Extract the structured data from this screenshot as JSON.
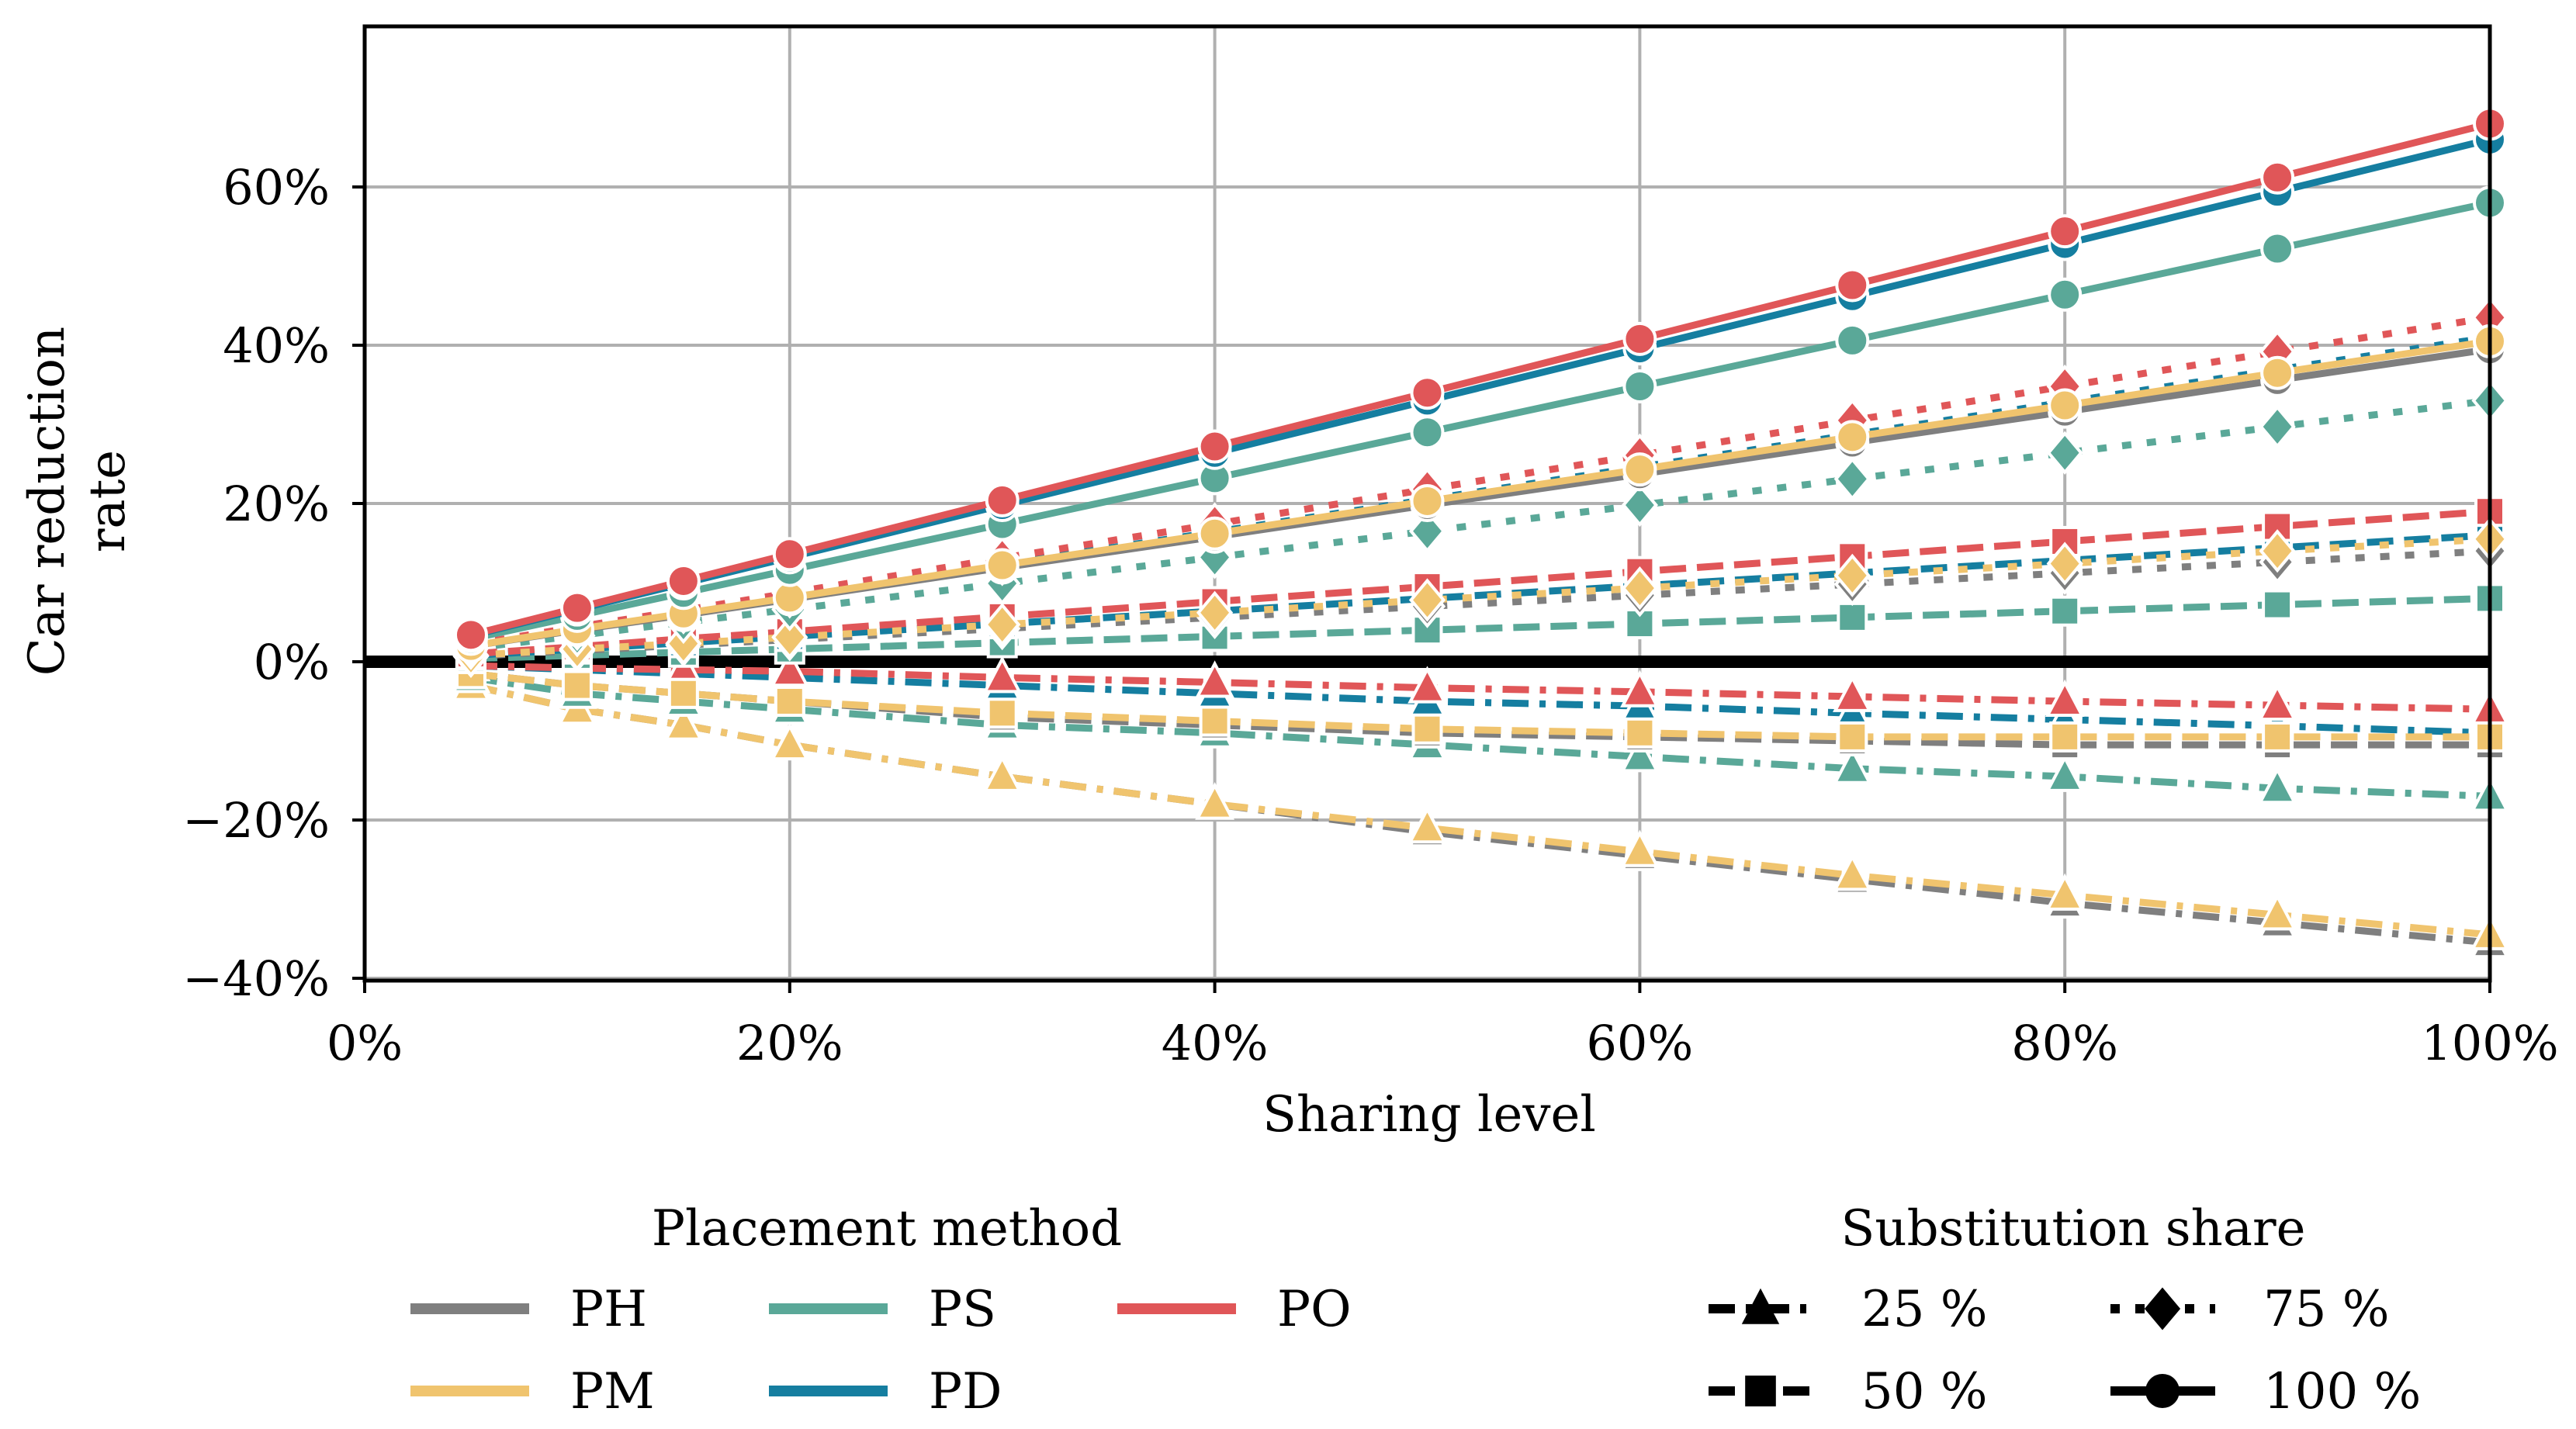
{
  "chart_data": {
    "type": "line",
    "title": "",
    "xlabel": "Sharing level",
    "ylabel": [
      "Car reduction",
      "rate"
    ],
    "xlim": [
      0,
      100
    ],
    "ylim": [
      -40,
      80
    ],
    "xticks": [
      0,
      20,
      40,
      60,
      80,
      100
    ],
    "xtick_labels": [
      "0%",
      "20%",
      "40%",
      "60%",
      "80%",
      "100%"
    ],
    "yticks": [
      -40,
      -20,
      0,
      20,
      40,
      60
    ],
    "ytick_labels": [
      "−40%",
      "−20%",
      "0%",
      "20%",
      "40%",
      "60%"
    ],
    "grid": true,
    "zero_line": true,
    "x": [
      5,
      10,
      15,
      20,
      30,
      40,
      50,
      60,
      70,
      80,
      90,
      100
    ],
    "placement_methods": [
      {
        "name": "PH",
        "color": "#7f7f7f"
      },
      {
        "name": "PM",
        "color": "#f0c46e"
      },
      {
        "name": "PS",
        "color": "#5aa898"
      },
      {
        "name": "PD",
        "color": "#157ea0"
      },
      {
        "name": "PO",
        "color": "#e05658"
      }
    ],
    "substitution_shares": [
      {
        "name": "25 %",
        "marker": "triangle",
        "linestyle": "dashdot"
      },
      {
        "name": "50 %",
        "marker": "square",
        "linestyle": "dashed"
      },
      {
        "name": "75 %",
        "marker": "diamond",
        "linestyle": "dotted"
      },
      {
        "name": "100 %",
        "marker": "circle",
        "linestyle": "solid"
      }
    ],
    "series": [
      {
        "method": "PH",
        "share": "25 %",
        "values": [
          -3,
          -6,
          -8,
          -10.5,
          -14.5,
          -18,
          -21.5,
          -24.5,
          -27.5,
          -30.5,
          -33,
          -35.5
        ]
      },
      {
        "method": "PM",
        "share": "25 %",
        "values": [
          -3,
          -6,
          -8,
          -10.5,
          -14.5,
          -18,
          -21,
          -24,
          -27,
          -29.5,
          -32,
          -34.5
        ]
      },
      {
        "method": "PS",
        "share": "25 %",
        "values": [
          -2,
          -4,
          -5,
          -6,
          -8,
          -9,
          -10.5,
          -12,
          -13.5,
          -14.5,
          -16,
          -17
        ]
      },
      {
        "method": "PD",
        "share": "25 %",
        "values": [
          -0.5,
          -1,
          -1.5,
          -2,
          -3,
          -4,
          -5,
          -5.6,
          -6.5,
          -7.3,
          -8.1,
          -9
        ]
      },
      {
        "method": "PO",
        "share": "25 %",
        "values": [
          -0.5,
          -0.8,
          -1,
          -1.2,
          -2,
          -2.6,
          -3.3,
          -3.8,
          -4.4,
          -5,
          -5.5,
          -6
        ]
      },
      {
        "method": "PH",
        "share": "50 %",
        "values": [
          -1.5,
          -3,
          -4,
          -5,
          -7,
          -8,
          -9,
          -9.5,
          -10,
          -10.5,
          -10.5,
          -10.5
        ]
      },
      {
        "method": "PM",
        "share": "50 %",
        "values": [
          -1.5,
          -3,
          -4,
          -5,
          -6.5,
          -7.5,
          -8.5,
          -9,
          -9.5,
          -9.5,
          -9.5,
          -9.5
        ]
      },
      {
        "method": "PS",
        "share": "50 %",
        "values": [
          0.4,
          0.8,
          1.2,
          1.6,
          2.4,
          3.2,
          4,
          4.8,
          5.6,
          6.4,
          7.2,
          8
        ]
      },
      {
        "method": "PD",
        "share": "50 %",
        "values": [
          0.8,
          1.6,
          2.4,
          3.2,
          4.8,
          6.4,
          8,
          9.6,
          11.2,
          12.8,
          14.4,
          16
        ]
      },
      {
        "method": "PO",
        "share": "50 %",
        "values": [
          1,
          1.9,
          2.9,
          3.8,
          5.7,
          7.6,
          9.5,
          11.4,
          13.3,
          15.2,
          17.1,
          19
        ]
      },
      {
        "method": "PH",
        "share": "75 %",
        "values": [
          0.7,
          1.4,
          2.1,
          2.8,
          4.2,
          5.6,
          7,
          8.4,
          9.8,
          11.2,
          12.6,
          14
        ]
      },
      {
        "method": "PM",
        "share": "75 %",
        "values": [
          0.8,
          1.6,
          2.3,
          3.1,
          4.7,
          6.2,
          7.8,
          9.3,
          10.9,
          12.4,
          14,
          15.5
        ]
      },
      {
        "method": "PS",
        "share": "75 %",
        "values": [
          1.7,
          3.3,
          5,
          6.6,
          9.9,
          13.2,
          16.5,
          19.8,
          23.1,
          26.4,
          29.7,
          33
        ]
      },
      {
        "method": "PD",
        "share": "75 %",
        "values": [
          2.1,
          4.1,
          6.2,
          8.2,
          12.3,
          16.4,
          20.5,
          24.6,
          28.7,
          32.8,
          36.9,
          41
        ]
      },
      {
        "method": "PO",
        "share": "75 %",
        "values": [
          2.2,
          4.4,
          6.5,
          8.7,
          13.1,
          17.4,
          21.8,
          26.1,
          30.5,
          34.8,
          39.2,
          43.5
        ]
      },
      {
        "method": "PH",
        "share": "100 %",
        "values": [
          2,
          4,
          5.9,
          7.9,
          11.9,
          15.8,
          19.8,
          23.7,
          27.7,
          31.6,
          35.6,
          39.5
        ]
      },
      {
        "method": "PM",
        "share": "100 %",
        "values": [
          2,
          4.1,
          6.1,
          8.1,
          12.2,
          16.2,
          20.3,
          24.3,
          28.4,
          32.4,
          36.5,
          40.5
        ]
      },
      {
        "method": "PS",
        "share": "100 %",
        "values": [
          2.9,
          5.8,
          8.7,
          11.6,
          17.4,
          23.2,
          29,
          34.8,
          40.6,
          46.4,
          52.2,
          58
        ]
      },
      {
        "method": "PD",
        "share": "100 %",
        "values": [
          3.3,
          6.6,
          9.9,
          13.2,
          19.8,
          26.4,
          33,
          39.6,
          46.2,
          52.8,
          59.4,
          66
        ]
      },
      {
        "method": "PO",
        "share": "100 %",
        "values": [
          3.4,
          6.8,
          10.2,
          13.6,
          20.4,
          27.2,
          34,
          40.8,
          47.6,
          54.4,
          61.2,
          68
        ]
      }
    ],
    "legends": {
      "placement_title": "Placement method",
      "substitution_title": "Substitution share",
      "placement": "bottom-left",
      "substitution": "bottom-right"
    }
  }
}
